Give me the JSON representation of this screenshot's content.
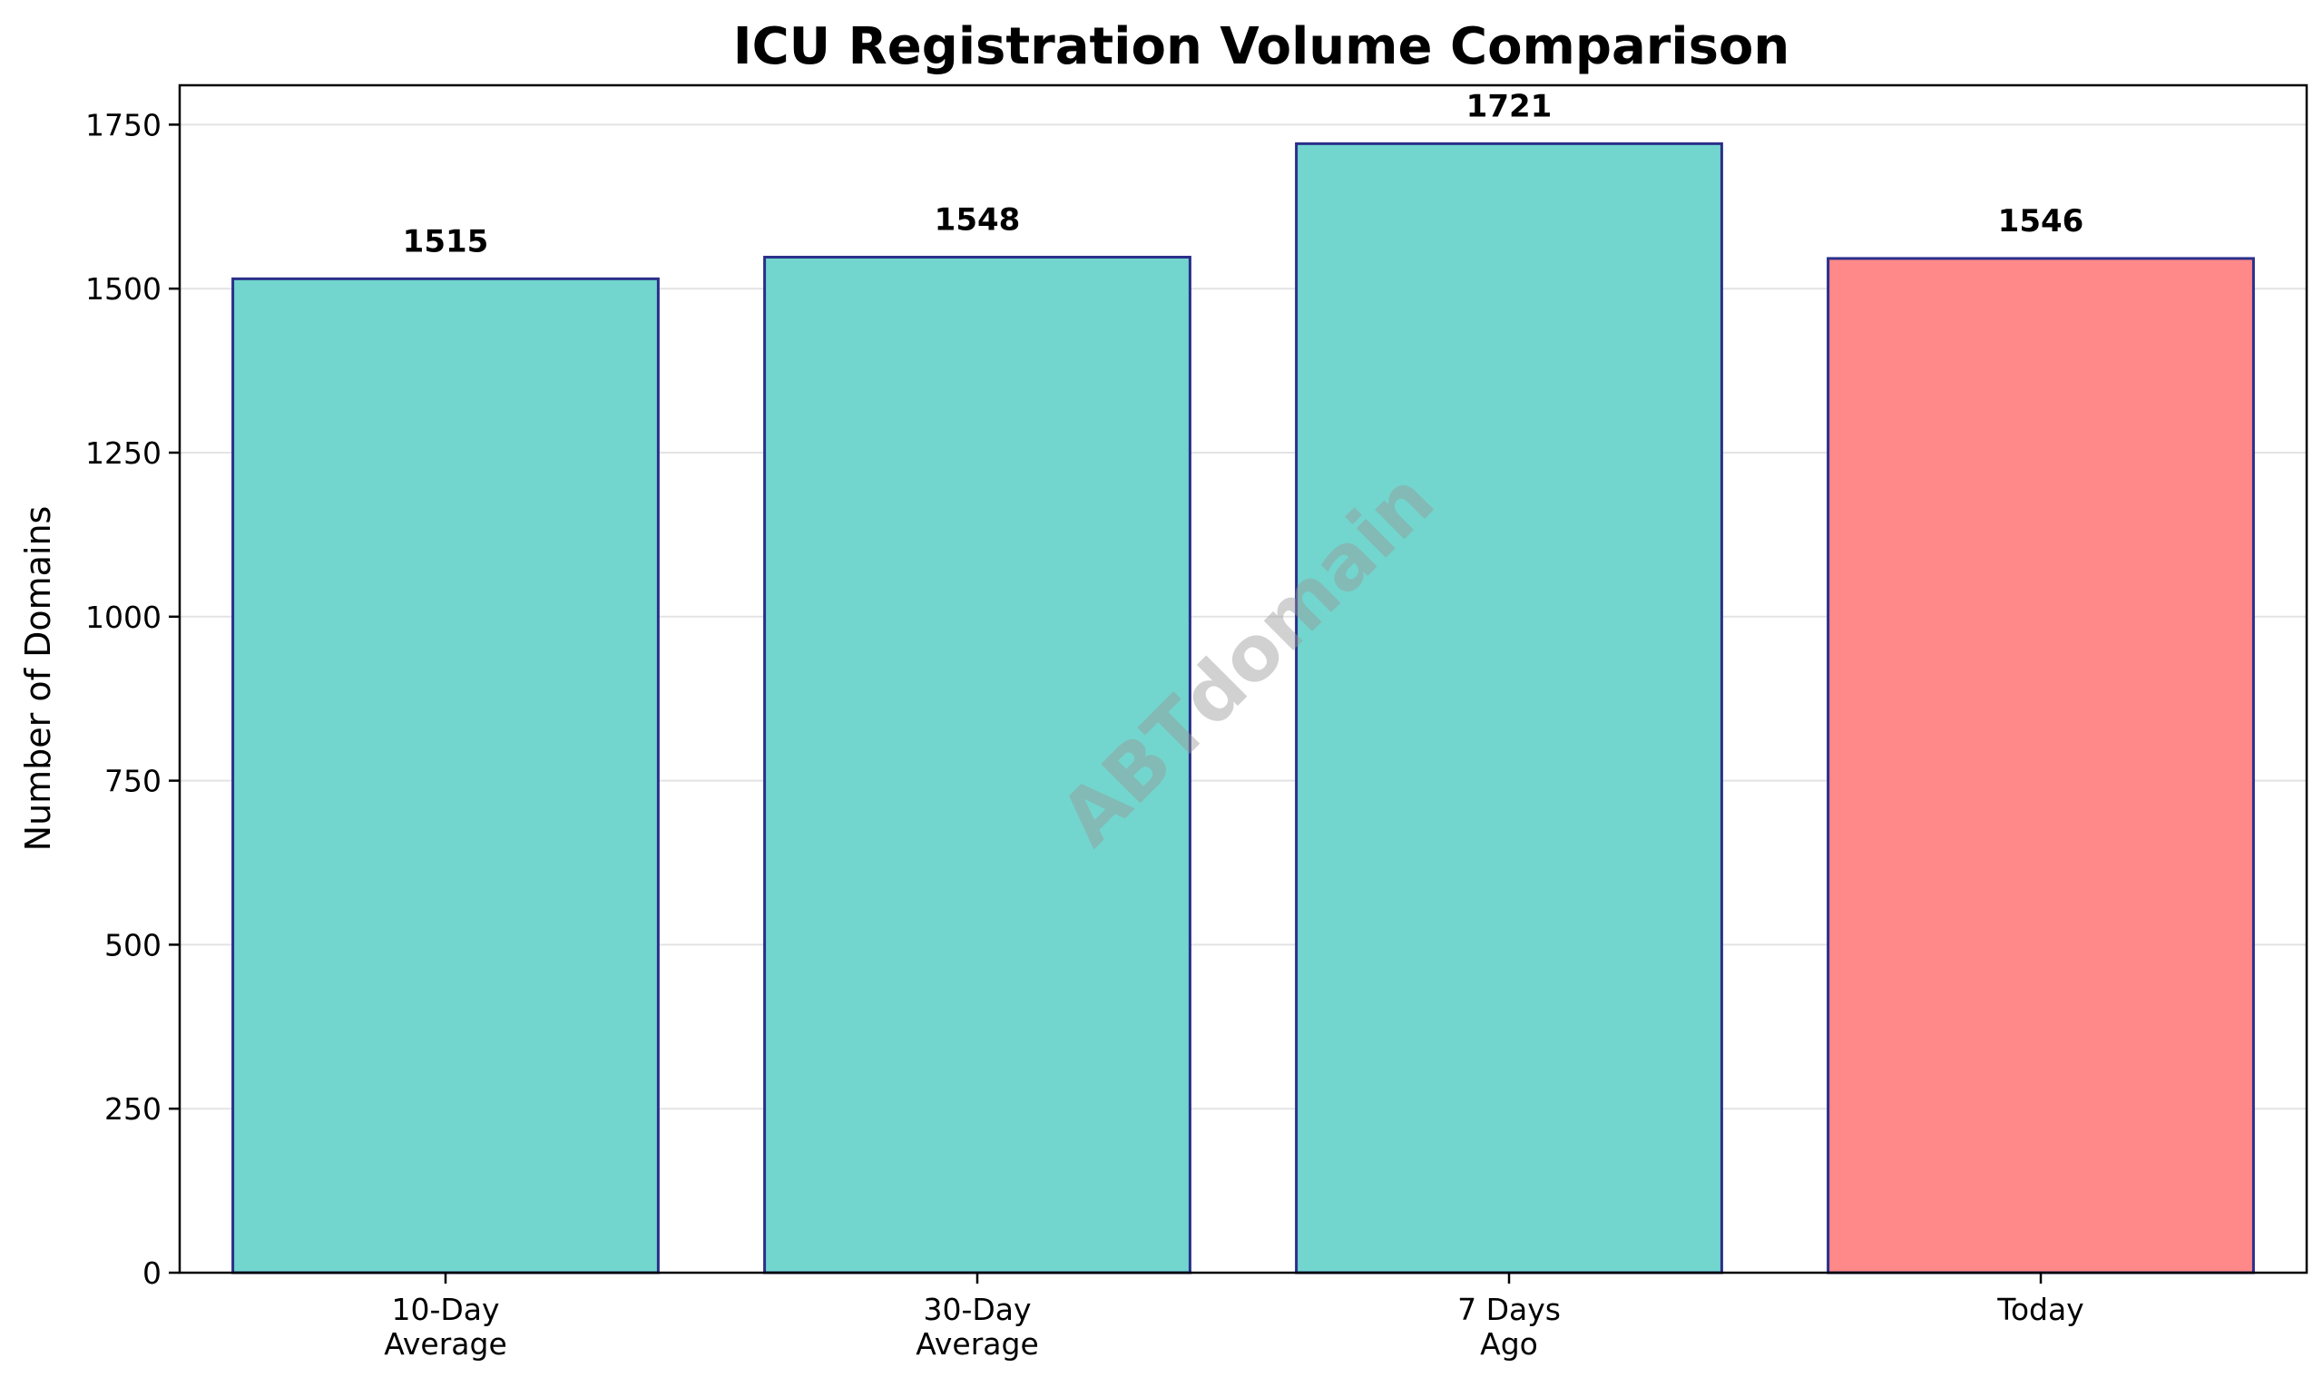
{
  "chart_data": {
    "type": "bar",
    "title": "ICU Registration Volume Comparison",
    "xlabel": "",
    "ylabel": "Number of Domains",
    "ylim": [
      0,
      1810
    ],
    "yticks": [
      0,
      250,
      500,
      750,
      1000,
      1250,
      1500,
      1750
    ],
    "grid": "horizontal",
    "categories": [
      [
        "10-Day",
        "Average"
      ],
      [
        "30-Day",
        "Average"
      ],
      [
        "7 Days",
        "Ago"
      ],
      [
        "Today"
      ]
    ],
    "values": [
      1515,
      1548,
      1721,
      1546
    ],
    "value_labels": [
      "1515",
      "1548",
      "1721",
      "1546"
    ],
    "bar_colors": [
      "#72d6ce",
      "#72d6ce",
      "#72d6ce",
      "#ff8888"
    ],
    "bar_edge_color": "#2a2f8a",
    "watermark": "ABTdomain"
  }
}
